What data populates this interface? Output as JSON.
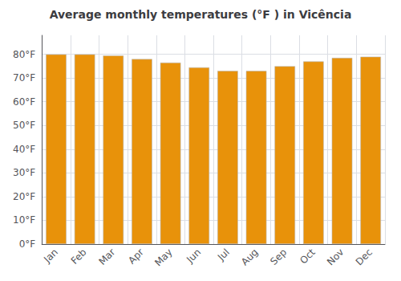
{
  "chart_data": {
    "type": "bar",
    "title": "Average monthly temperatures (°F ) in Vicência",
    "categories": [
      "Jan",
      "Feb",
      "Mar",
      "Apr",
      "May",
      "Jun",
      "Jul",
      "Aug",
      "Sep",
      "Oct",
      "Nov",
      "Dec"
    ],
    "values": [
      80,
      80,
      79.5,
      78,
      76.5,
      74.5,
      73,
      73,
      75,
      77,
      78.5,
      79
    ],
    "color": "#E8920A",
    "ylim": [
      0,
      88
    ],
    "yticks": [
      {
        "value": 0,
        "label": "0°F"
      },
      {
        "value": 10,
        "label": "10°F"
      },
      {
        "value": 20,
        "label": "20°F"
      },
      {
        "value": 30,
        "label": "30°F"
      },
      {
        "value": 40,
        "label": "40°F"
      },
      {
        "value": 50,
        "label": "50°F"
      },
      {
        "value": 60,
        "label": "60°F"
      },
      {
        "value": 70,
        "label": "70°F"
      },
      {
        "value": 80,
        "label": "80°F"
      }
    ],
    "grid": true
  }
}
